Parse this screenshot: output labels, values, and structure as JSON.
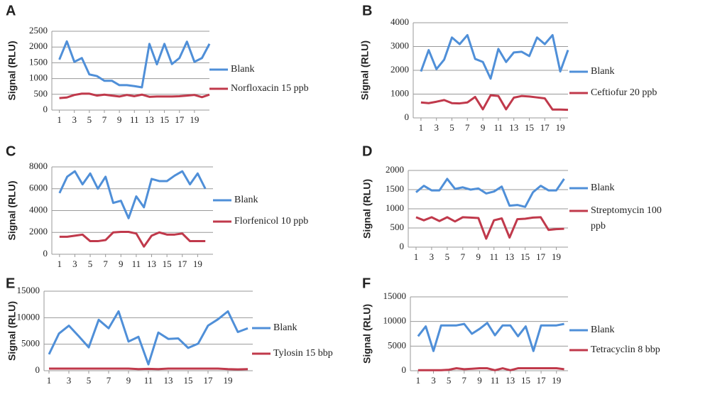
{
  "chart_data": [
    {
      "type": "line",
      "label": "A",
      "ylabel": "Signal (RLU)",
      "x": [
        1,
        2,
        3,
        4,
        5,
        6,
        7,
        8,
        9,
        10,
        11,
        12,
        13,
        14,
        15,
        16,
        17,
        18,
        19,
        20,
        21
      ],
      "xlim": [
        0,
        21
      ],
      "xticks": [
        1,
        3,
        5,
        7,
        9,
        11,
        13,
        15,
        17,
        19
      ],
      "ylim": [
        0,
        2500
      ],
      "yticks": [
        0,
        500,
        1000,
        1500,
        2000,
        2500
      ],
      "grid": true,
      "legend": "right",
      "series": [
        {
          "name": "Blank",
          "color": "#4f8fd8",
          "values": [
            1600,
            2180,
            1530,
            1650,
            1130,
            1080,
            930,
            930,
            790,
            790,
            760,
            720,
            2100,
            1450,
            2100,
            1460,
            1650,
            2170,
            1530,
            1650,
            2100
          ]
        },
        {
          "name": "Norfloxacin 15 ppb",
          "color": "#c0394b",
          "values": [
            380,
            400,
            480,
            520,
            520,
            460,
            490,
            460,
            430,
            480,
            440,
            490,
            420,
            430,
            430,
            430,
            440,
            460,
            480,
            410,
            490
          ]
        }
      ]
    },
    {
      "type": "line",
      "label": "B",
      "ylabel": "Signal (RLU)",
      "x": [
        1,
        2,
        3,
        4,
        5,
        6,
        7,
        8,
        9,
        10,
        11,
        12,
        13,
        14,
        15,
        16,
        17,
        18,
        19,
        20
      ],
      "xlim": [
        0,
        20
      ],
      "xticks": [
        1,
        3,
        5,
        7,
        9,
        11,
        13,
        15,
        17,
        19
      ],
      "ylim": [
        0,
        4000
      ],
      "yticks": [
        0,
        1000,
        2000,
        3000,
        4000
      ],
      "grid": true,
      "legend": "right",
      "series": [
        {
          "name": "Blank",
          "color": "#4f8fd8",
          "values": [
            1950,
            2850,
            2050,
            2450,
            3380,
            3100,
            3480,
            2480,
            2350,
            1650,
            2900,
            2350,
            2750,
            2780,
            2600,
            3380,
            3100,
            3480,
            1950,
            2850
          ]
        },
        {
          "name": "Ceftiofur 20 ppb",
          "color": "#c0394b",
          "values": [
            650,
            620,
            680,
            750,
            620,
            610,
            650,
            880,
            360,
            950,
            920,
            360,
            850,
            920,
            900,
            860,
            820,
            350,
            350,
            340
          ]
        }
      ]
    },
    {
      "type": "line",
      "label": "C",
      "ylabel": "Signal (RLU)",
      "x": [
        1,
        2,
        3,
        4,
        5,
        6,
        7,
        8,
        9,
        10,
        11,
        12,
        13,
        14,
        15,
        16,
        17,
        18,
        19,
        20
      ],
      "xlim": [
        0,
        21
      ],
      "xticks": [
        1,
        3,
        5,
        7,
        9,
        11,
        13,
        15,
        17,
        19
      ],
      "ylim": [
        0,
        8000
      ],
      "yticks": [
        0,
        2000,
        4000,
        6000,
        8000
      ],
      "grid": true,
      "legend": "right",
      "series": [
        {
          "name": "Blank",
          "color": "#4f8fd8",
          "values": [
            5600,
            7100,
            7600,
            6400,
            7400,
            6000,
            7100,
            4700,
            4900,
            3300,
            5300,
            4300,
            6900,
            6700,
            6700,
            7200,
            7600,
            6400,
            7400,
            6000
          ]
        },
        {
          "name": "Florfenicol 10 ppb",
          "color": "#c0394b",
          "values": [
            1600,
            1600,
            1700,
            1800,
            1200,
            1200,
            1300,
            2000,
            2050,
            2050,
            1900,
            700,
            1700,
            2000,
            1800,
            1800,
            1900,
            1200,
            1200,
            1200
          ]
        }
      ]
    },
    {
      "type": "line",
      "label": "D",
      "ylabel": "Signal (RLU)",
      "x": [
        1,
        2,
        3,
        4,
        5,
        6,
        7,
        8,
        9,
        10,
        11,
        12,
        13,
        14,
        15,
        16,
        17,
        18,
        19,
        20
      ],
      "xlim": [
        0,
        20.5
      ],
      "xticks": [
        1,
        3,
        5,
        7,
        9,
        11,
        13,
        15,
        17,
        19
      ],
      "ylim": [
        0,
        2000
      ],
      "yticks": [
        0,
        500,
        1000,
        1500,
        2000
      ],
      "grid": true,
      "legend": "right",
      "series": [
        {
          "name": "Blank",
          "color": "#4f8fd8",
          "values": [
            1430,
            1600,
            1480,
            1480,
            1780,
            1520,
            1560,
            1500,
            1530,
            1400,
            1450,
            1580,
            1080,
            1100,
            1050,
            1430,
            1600,
            1480,
            1480,
            1780
          ]
        },
        {
          "name": "Streptomycin 100 ppb",
          "color": "#c0394b",
          "values": [
            780,
            700,
            780,
            680,
            780,
            670,
            780,
            770,
            760,
            220,
            700,
            750,
            250,
            730,
            740,
            770,
            780,
            450,
            470,
            480
          ]
        }
      ]
    },
    {
      "type": "line",
      "label": "E",
      "ylabel": "Signal (RLU)",
      "x": [
        1,
        2,
        3,
        4,
        5,
        6,
        7,
        8,
        9,
        10,
        11,
        12,
        13,
        14,
        15,
        16,
        17,
        18,
        19,
        20,
        21
      ],
      "xlim": [
        0.5,
        21.5
      ],
      "xticks": [
        1,
        3,
        5,
        7,
        9,
        11,
        13,
        15,
        17,
        19
      ],
      "ylim": [
        0,
        15000
      ],
      "yticks": [
        0,
        5000,
        10000,
        15000
      ],
      "grid": true,
      "legend": "right",
      "series": [
        {
          "name": "Blank",
          "color": "#4f8fd8",
          "values": [
            3100,
            7000,
            8500,
            6500,
            4400,
            9600,
            8000,
            11200,
            5500,
            6400,
            1200,
            7200,
            6000,
            6100,
            4300,
            5100,
            8500,
            9700,
            11200,
            7300,
            8000
          ]
        },
        {
          "name": "Tylosin 15 bbp",
          "color": "#c0394b",
          "values": [
            400,
            400,
            400,
            400,
            400,
            400,
            400,
            400,
            400,
            300,
            350,
            300,
            400,
            400,
            400,
            400,
            400,
            400,
            300,
            250,
            300
          ]
        }
      ]
    },
    {
      "type": "line",
      "label": "F",
      "ylabel": "Signal (RLU)",
      "x": [
        1,
        2,
        3,
        4,
        5,
        6,
        7,
        8,
        9,
        10,
        11,
        12,
        13,
        14,
        15,
        16,
        17,
        18,
        19,
        20
      ],
      "xlim": [
        0,
        20.5
      ],
      "xticks": [
        1,
        3,
        5,
        7,
        9,
        11,
        13,
        15,
        17,
        19
      ],
      "ylim": [
        0,
        15000
      ],
      "yticks": [
        0,
        5000,
        10000,
        15000
      ],
      "grid": true,
      "legend": "right",
      "series": [
        {
          "name": "Blank",
          "color": "#4f8fd8",
          "values": [
            7000,
            9000,
            4000,
            9200,
            9200,
            9200,
            9500,
            7500,
            8500,
            9700,
            7200,
            9200,
            9200,
            7000,
            9000,
            4000,
            9200,
            9200,
            9200,
            9500
          ]
        },
        {
          "name": "Tetracyclin 8 bbp",
          "color": "#c0394b",
          "values": [
            100,
            100,
            100,
            100,
            200,
            500,
            300,
            400,
            500,
            500,
            100,
            500,
            100,
            500,
            500,
            500,
            500,
            500,
            500,
            300
          ]
        }
      ]
    }
  ]
}
